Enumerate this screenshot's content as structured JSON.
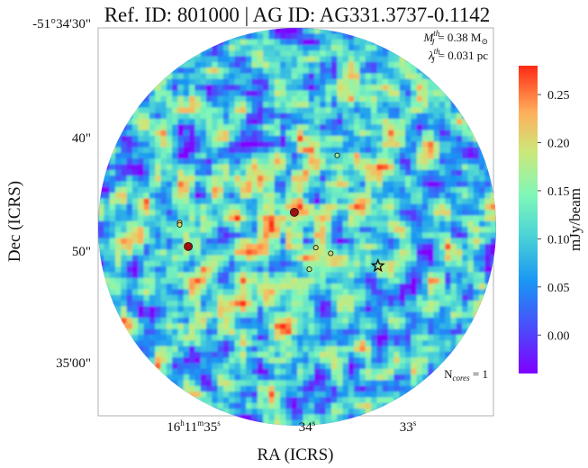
{
  "chart_data": {
    "type": "heatmap",
    "title": "Ref. ID: 801000 | AG ID: AG331.3737-0.1142",
    "xlabel": "RA (ICRS)",
    "ylabel": "Dec (ICRS)",
    "x_ticks": [
      {
        "label": "16h11m35s",
        "ra_sec": 35.0
      },
      {
        "label": "34s",
        "ra_sec": 34.0
      },
      {
        "label": "33s",
        "ra_sec": 33.0
      }
    ],
    "x_tick_parts": {
      "t0": {
        "h": "16",
        "hs": "h",
        "m": "11",
        "ms": "m",
        "s": "35",
        "ss": "s"
      },
      "t1": {
        "v": "34",
        "s": "s"
      },
      "t2": {
        "v": "33",
        "s": "s"
      }
    },
    "y_ticks": [
      {
        "label": "-51°34'30\"",
        "dec_arcsec": 30
      },
      {
        "label": "40\"",
        "dec_arcsec": 40
      },
      {
        "label": "50\"",
        "dec_arcsec": 50
      },
      {
        "label": "35'00\"",
        "dec_arcsec": 60
      }
    ],
    "colorbar": {
      "label": "mJy/beam",
      "ticks": [
        "0.25",
        "0.20",
        "0.15",
        "0.10",
        "0.05",
        "0.00"
      ],
      "tick_values": [
        0.25,
        0.2,
        0.15,
        0.1,
        0.05,
        0.0
      ],
      "range": [
        -0.04,
        0.28
      ],
      "colormap": "rainbow"
    },
    "annotations": {
      "mass_label": "M",
      "mass_sup": "th",
      "mass_sub": "J",
      "mass_value": "= 0.38 M",
      "mass_sun": "⊙",
      "length_label": "λ",
      "length_sup": "th",
      "length_sub": "J",
      "length_value": "= 0.031 pc",
      "cores_label": "N",
      "cores_sub": "cores",
      "cores_value": " = 1"
    },
    "cores": [
      {
        "id": 1,
        "ra_sec": 33.28,
        "dec_arcsec": 50.9,
        "marker": "star"
      }
    ],
    "bright_sources": [
      {
        "ra_sec": 34.06,
        "dec_arcsec": 46.2,
        "value": 0.28
      },
      {
        "ra_sec": 35.05,
        "dec_arcsec": 49.2,
        "value": 0.27
      },
      {
        "ra_sec": 35.13,
        "dec_arcsec": 47.1,
        "value": 0.22
      },
      {
        "ra_sec": 35.13,
        "dec_arcsec": 47.3,
        "value": 0.2
      },
      {
        "ra_sec": 33.86,
        "dec_arcsec": 49.3,
        "value": 0.2
      },
      {
        "ra_sec": 33.72,
        "dec_arcsec": 49.8,
        "value": 0.2
      },
      {
        "ra_sec": 33.92,
        "dec_arcsec": 51.2,
        "value": 0.18
      },
      {
        "ra_sec": 33.66,
        "dec_arcsec": 41.2,
        "value": 0.16
      }
    ],
    "colors": {
      "background_min": "#7f00ff",
      "low": "#3b5df5",
      "mid": "#4de6d0",
      "high": "#ff5f2e",
      "peak": "#a01010",
      "frame": "#b0b0b0"
    }
  }
}
